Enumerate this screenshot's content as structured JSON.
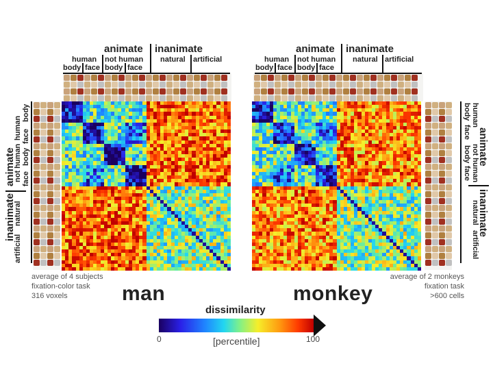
{
  "human_panel": {
    "top_header": {
      "animate": "animate",
      "inanimate": "inanimate",
      "human": "human",
      "not_human": "not human",
      "body_1": "body",
      "face_1": "face",
      "body_2": "body",
      "face_2": "face",
      "natural": "natural",
      "artificial": "artificial"
    },
    "side_header": {
      "animate": "animate",
      "inanimate": "inanimate",
      "human": "human",
      "not_human": "not human",
      "body_1": "body",
      "face_1": "face",
      "body_2": "body",
      "face_2": "face",
      "natural": "natural",
      "artificial": "artificial"
    },
    "note_lines": [
      "average of 4 subjects",
      "fixation-color task",
      "316 voxels"
    ],
    "species": "man"
  },
  "monkey_panel": {
    "top_header": {
      "animate": "animate",
      "inanimate": "inanimate",
      "human": "human",
      "not_human": "not human",
      "body_1": "body",
      "face_1": "face",
      "body_2": "body",
      "face_2": "face",
      "natural": "natural",
      "artificial": "artificial"
    },
    "side_header": {
      "animate": "animate",
      "inanimate": "inanimate",
      "human": "human",
      "not_human": "not human",
      "body_1": "body",
      "face_1": "face",
      "body_2": "body",
      "face_2": "face",
      "natural": "natural",
      "artificial": "artificial"
    },
    "note_lines": [
      "average of 2 monkeys",
      "fixation task",
      ">600 cells"
    ],
    "species": "monkey"
  },
  "colorbar": {
    "title": "dissimilarity",
    "min_label": "0",
    "max_label": "100",
    "unit_label": "[percentile]",
    "colors": [
      "#1a0060",
      "#2a20e8",
      "#1f86ff",
      "#22d6f0",
      "#7ef08a",
      "#f6ee2a",
      "#ff9a10",
      "#ff3a00",
      "#c00000"
    ]
  }
}
